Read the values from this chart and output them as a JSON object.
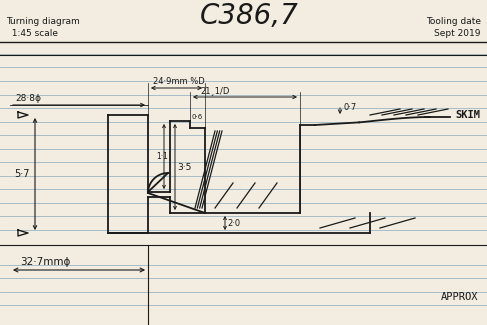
{
  "title_left": "Turning diagram\n  1:45 scale",
  "title_center": "C386,7",
  "title_right": "Tooling date\nSept 2019",
  "bg_color": "#f2ede0",
  "line_color": "#1a1a1a",
  "ruled_color": "#8aaabb",
  "dim_28_8": "28·8ϕ",
  "dim_24_9": "24·9mm %D",
  "dim_21_8": "21¸1/D",
  "dim_0_7": "0·7",
  "dim_1_1": "1·1",
  "dim_0_6": "0·6",
  "dim_3_5": "3·5",
  "dim_2_0": "2·0",
  "dim_5_7": "5·7",
  "dim_327": "32·7mmϕ",
  "label_skim": "SKIM",
  "label_approx": "APPROX"
}
